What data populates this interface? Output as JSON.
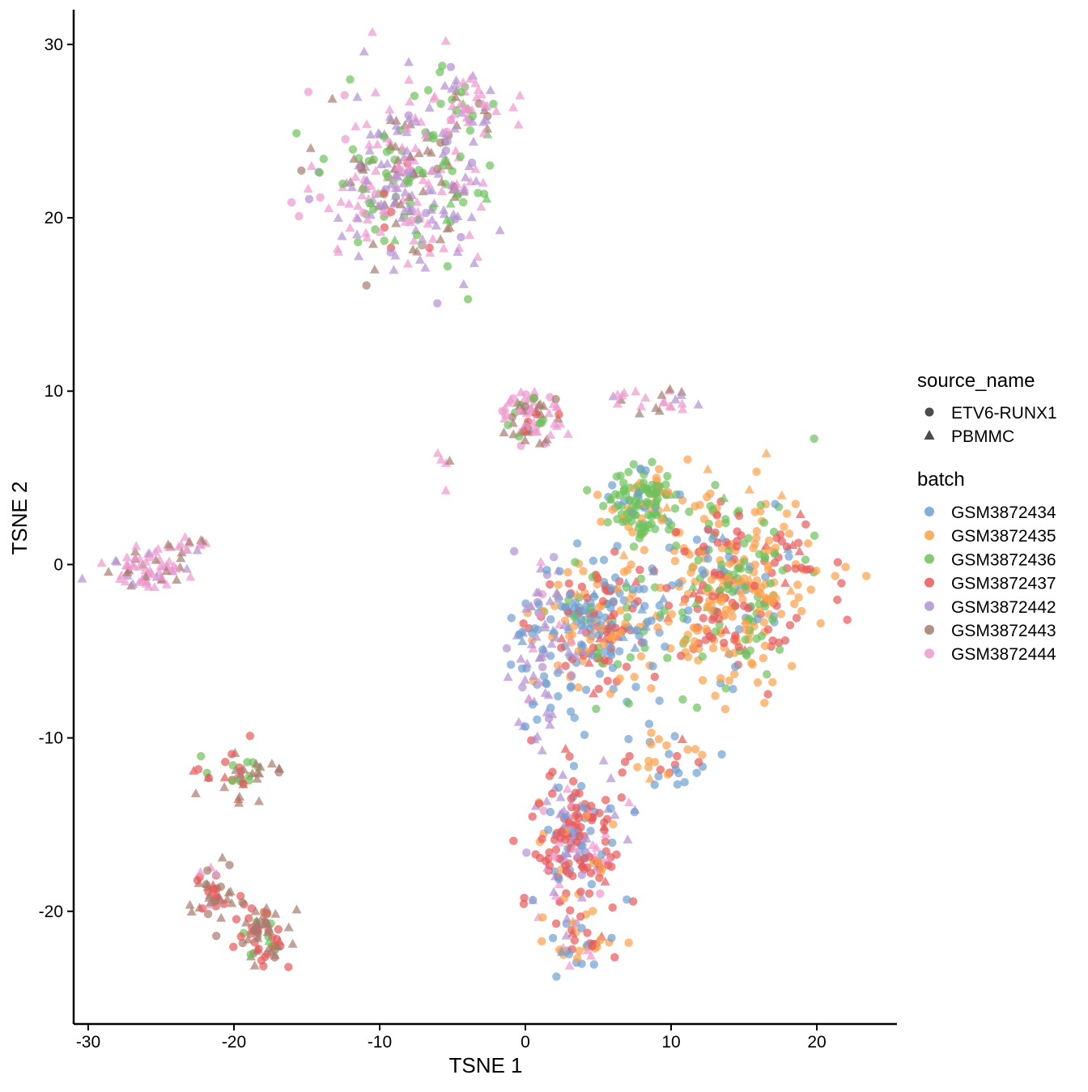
{
  "chart_data": {
    "type": "scatter",
    "xlabel": "TSNE 1",
    "ylabel": "TSNE 2",
    "xlim": [
      -31,
      25.5
    ],
    "ylim": [
      -26.5,
      32
    ],
    "x_ticks": [
      -30,
      -20,
      -10,
      0,
      10,
      20
    ],
    "y_ticks": [
      -20,
      -10,
      0,
      10,
      20,
      30
    ],
    "grid": false,
    "legend_position": "right",
    "legends": {
      "shape": {
        "title": "source_name",
        "items": [
          {
            "label": "ETV6-RUNX1",
            "shape": "circle"
          },
          {
            "label": "PBMMC",
            "shape": "triangle"
          }
        ]
      },
      "color": {
        "title": "batch",
        "items": [
          {
            "label": "GSM3872434",
            "color": "#6f9fd0"
          },
          {
            "label": "GSM3872435",
            "color": "#fca04a"
          },
          {
            "label": "GSM3872436",
            "color": "#6cc25a"
          },
          {
            "label": "GSM3872437",
            "color": "#e8595a"
          },
          {
            "label": "GSM3872442",
            "color": "#b292d2"
          },
          {
            "label": "GSM3872443",
            "color": "#a67c6e"
          },
          {
            "label": "GSM3872444",
            "color": "#ee98cf"
          }
        ]
      }
    },
    "point_opacity": 0.7,
    "clusters": [
      {
        "cx": -8,
        "cy": 22,
        "sx": 3.8,
        "sy": 3.6,
        "n": 330,
        "shape": "mixed",
        "batch_weights": {
          "GSM3872442": 4,
          "GSM3872444": 4,
          "GSM3872443": 2,
          "GSM3872436": 2,
          "GSM3872437": 0.3
        }
      },
      {
        "cx": -4,
        "cy": 26.5,
        "sx": 1.6,
        "sy": 1.7,
        "n": 60,
        "shape": "mixed",
        "batch_weights": {
          "GSM3872444": 4,
          "GSM3872442": 2,
          "GSM3872443": 2,
          "GSM3872436": 1
        }
      },
      {
        "cx": 0.5,
        "cy": 8.5,
        "sx": 1.4,
        "sy": 1.1,
        "n": 80,
        "shape": "mixed",
        "batch_weights": {
          "GSM3872444": 4,
          "GSM3872443": 3,
          "GSM3872437": 1,
          "GSM3872436": 1
        }
      },
      {
        "cx": 9,
        "cy": 9.5,
        "sx": 2.2,
        "sy": 0.6,
        "n": 25,
        "shape": "triangle",
        "batch_weights": {
          "GSM3872444": 3,
          "GSM3872443": 2,
          "GSM3872442": 1
        }
      },
      {
        "cx": -5.5,
        "cy": 5.8,
        "sx": 0.3,
        "sy": 1.0,
        "n": 5,
        "shape": "triangle",
        "batch_weights": {
          "GSM3872444": 2,
          "GSM3872443": 1
        }
      },
      {
        "cx": -26,
        "cy": -0.3,
        "sx": 1.8,
        "sy": 0.8,
        "n": 70,
        "shape": "triangle",
        "batch_weights": {
          "GSM3872444": 5,
          "GSM3872443": 1,
          "GSM3872442": 1
        }
      },
      {
        "cx": -23.5,
        "cy": 0.8,
        "sx": 1.3,
        "sy": 0.6,
        "n": 18,
        "shape": "triangle",
        "batch_weights": {
          "GSM3872443": 2,
          "GSM3872444": 3
        }
      },
      {
        "cx": -19.5,
        "cy": -12.0,
        "sx": 2.2,
        "sy": 1.0,
        "n": 45,
        "shape": "mixed",
        "batch_weights": {
          "GSM3872443": 4,
          "GSM3872437": 3,
          "GSM3872436": 2
        }
      },
      {
        "cx": -21.5,
        "cy": -19.0,
        "sx": 1.0,
        "sy": 1.2,
        "n": 45,
        "shape": "mixed",
        "batch_weights": {
          "GSM3872443": 5,
          "GSM3872437": 3,
          "GSM3872444": 1
        }
      },
      {
        "cx": -18.0,
        "cy": -21.5,
        "sx": 1.3,
        "sy": 1.0,
        "n": 75,
        "shape": "mixed",
        "batch_weights": {
          "GSM3872443": 5,
          "GSM3872437": 4,
          "GSM3872436": 1
        }
      },
      {
        "cx": 14,
        "cy": -1,
        "sx": 4.0,
        "sy": 3.6,
        "n": 420,
        "shape": "mixed",
        "batch_weights": {
          "GSM3872435": 5,
          "GSM3872437": 3,
          "GSM3872436": 2,
          "GSM3872434": 1
        }
      },
      {
        "cx": 8,
        "cy": 3.5,
        "sx": 2.2,
        "sy": 1.5,
        "n": 130,
        "shape": "mixed",
        "batch_weights": {
          "GSM3872436": 6,
          "GSM3872435": 1,
          "GSM3872434": 1
        }
      },
      {
        "cx": 5,
        "cy": -3.5,
        "sx": 2.6,
        "sy": 2.6,
        "n": 240,
        "shape": "mixed",
        "batch_weights": {
          "GSM3872434": 4,
          "GSM3872437": 2,
          "GSM3872435": 2,
          "GSM3872436": 1
        }
      },
      {
        "cx": 1.0,
        "cy": -5,
        "sx": 1.8,
        "sy": 3.0,
        "n": 90,
        "shape": "mixed",
        "batch_weights": {
          "GSM3872442": 4,
          "GSM3872434": 2,
          "GSM3872444": 1
        }
      },
      {
        "cx": 3.5,
        "cy": -16,
        "sx": 2.2,
        "sy": 3.0,
        "n": 220,
        "shape": "mixed",
        "batch_weights": {
          "GSM3872437": 5,
          "GSM3872434": 2,
          "GSM3872442": 2,
          "GSM3872444": 2,
          "GSM3872435": 1
        }
      },
      {
        "cx": 4.0,
        "cy": -22,
        "sx": 1.5,
        "sy": 0.8,
        "n": 40,
        "shape": "mixed",
        "batch_weights": {
          "GSM3872435": 3,
          "GSM3872437": 2,
          "GSM3872434": 2,
          "GSM3872444": 1
        }
      },
      {
        "cx": 10,
        "cy": -11,
        "sx": 1.8,
        "sy": 1.4,
        "n": 35,
        "shape": "mixed",
        "batch_weights": {
          "GSM3872435": 3,
          "GSM3872437": 2,
          "GSM3872434": 2
        }
      }
    ]
  }
}
